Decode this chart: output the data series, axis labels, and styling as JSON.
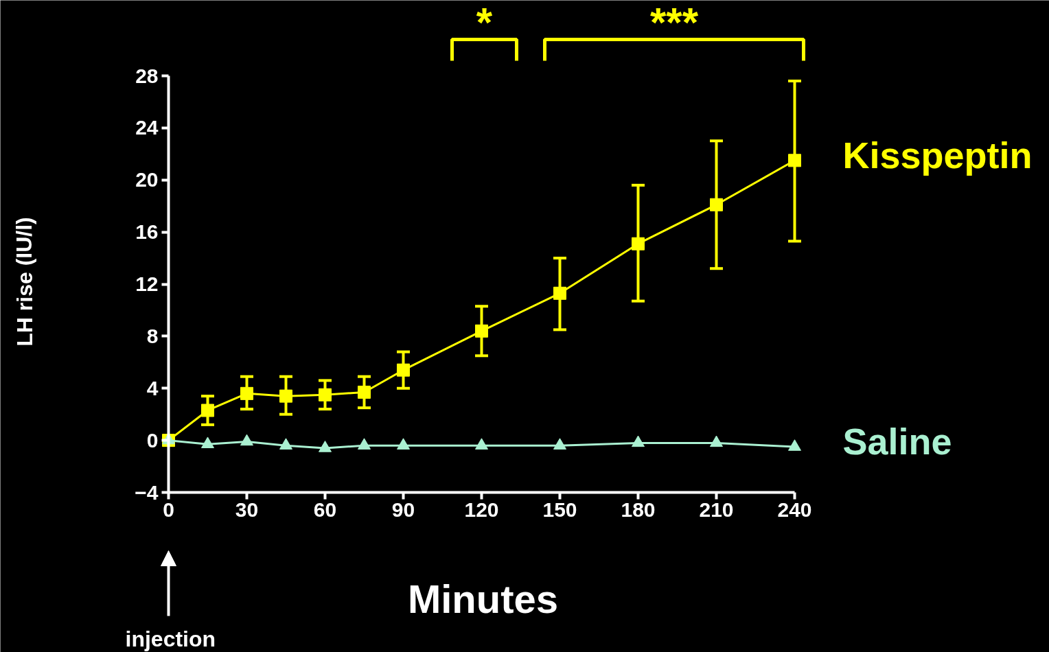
{
  "chart_data": {
    "type": "line",
    "xlabel": "Minutes",
    "ylabel": "LH rise (IU/l)",
    "x": [
      0,
      15,
      30,
      45,
      60,
      75,
      90,
      120,
      150,
      180,
      210,
      240
    ],
    "series": [
      {
        "name": "Kisspeptin",
        "color": "#ffff00",
        "marker": "square",
        "values": [
          0,
          2.3,
          3.6,
          3.4,
          3.5,
          3.7,
          5.4,
          8.4,
          11.3,
          15.1,
          18.1,
          21.5
        ],
        "errors": [
          null,
          [
            1.2,
            3.4
          ],
          [
            2.4,
            4.9
          ],
          [
            2.0,
            4.9
          ],
          [
            2.4,
            4.6
          ],
          [
            2.5,
            4.9
          ],
          [
            4.0,
            6.8
          ],
          [
            6.5,
            10.3
          ],
          [
            8.5,
            14.0
          ],
          [
            10.7,
            19.6
          ],
          [
            13.2,
            23.0
          ],
          [
            15.3,
            27.6
          ]
        ]
      },
      {
        "name": "Saline",
        "color": "#aaf0d1",
        "marker": "triangle",
        "values": [
          0,
          -0.3,
          -0.1,
          -0.4,
          -0.6,
          -0.4,
          -0.4,
          -0.4,
          -0.4,
          -0.2,
          -0.2,
          -0.5
        ]
      }
    ],
    "xlim": [
      0,
      240
    ],
    "xticks": [
      0,
      30,
      60,
      90,
      120,
      150,
      180,
      210,
      240
    ],
    "ylim": [
      -4,
      28
    ],
    "yticks": [
      -4,
      0,
      4,
      8,
      12,
      16,
      20,
      24,
      28
    ],
    "grid": false,
    "line_style": "solid",
    "annotations": [
      "*",
      "***",
      "injection"
    ]
  }
}
